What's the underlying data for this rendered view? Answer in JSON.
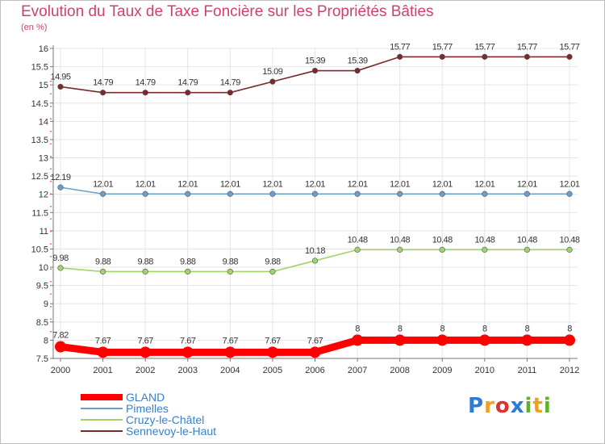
{
  "chart_data": {
    "type": "line",
    "title": "Evolution du Taux de Taxe Foncière sur les Propriétés Bâties",
    "ylabel": "(en %)",
    "xlabel": "",
    "categories": [
      "2000",
      "2001",
      "2002",
      "2003",
      "2004",
      "2005",
      "2006",
      "2007",
      "2008",
      "2009",
      "2010",
      "2011",
      "2012"
    ],
    "ylim": [
      7.5,
      16
    ],
    "yticks": [
      7.5,
      8,
      8.5,
      9,
      9.5,
      10,
      10.5,
      11,
      11.5,
      12,
      12.5,
      13,
      13.5,
      14,
      14.5,
      15,
      15.5,
      16
    ],
    "ytick_labels": [
      "7.5",
      "8",
      "8.5",
      "9",
      "9.5",
      "10",
      "10.5",
      "11",
      "11.5",
      "12",
      "12.5",
      "13",
      "13.5",
      "14",
      "14.5",
      "15",
      "15.5",
      "16"
    ],
    "grid": true,
    "legend_position": "bottom-left",
    "series": [
      {
        "name": "GLAND",
        "values": [
          7.82,
          7.67,
          7.67,
          7.67,
          7.67,
          7.67,
          7.67,
          8,
          8,
          8,
          8,
          8,
          8
        ],
        "labels": [
          "7.82",
          "7.67",
          "7.67",
          "7.67",
          "7.67",
          "7.67",
          "7.67",
          "8",
          "8",
          "8",
          "8",
          "8",
          "8"
        ],
        "color": "#ff0000",
        "bold": true
      },
      {
        "name": "Pimelles",
        "values": [
          12.19,
          12.01,
          12.01,
          12.01,
          12.01,
          12.01,
          12.01,
          12.01,
          12.01,
          12.01,
          12.01,
          12.01,
          12.01
        ],
        "labels": [
          "12.19",
          "12.01",
          "12.01",
          "12.01",
          "12.01",
          "12.01",
          "12.01",
          "12.01",
          "12.01",
          "12.01",
          "12.01",
          "12.01",
          "12.01"
        ],
        "color": "#6b9ec9",
        "bold": false
      },
      {
        "name": "Cruzy-le-Châtel",
        "values": [
          9.98,
          9.88,
          9.88,
          9.88,
          9.88,
          9.88,
          10.18,
          10.48,
          10.48,
          10.48,
          10.48,
          10.48,
          10.48
        ],
        "labels": [
          "9.98",
          "9.88",
          "9.88",
          "9.88",
          "9.88",
          "9.88",
          "10.18",
          "10.48",
          "10.48",
          "10.48",
          "10.48",
          "10.48",
          "10.48"
        ],
        "color": "#9fd56a",
        "bold": false
      },
      {
        "name": "Sennevoy-le-Haut",
        "values": [
          14.95,
          14.79,
          14.79,
          14.79,
          14.79,
          15.09,
          15.39,
          15.39,
          15.77,
          15.77,
          15.77,
          15.77,
          15.77
        ],
        "labels": [
          "14.95",
          "14.79",
          "14.79",
          "14.79",
          "14.79",
          "15.09",
          "15.39",
          "15.39",
          "15.77",
          "15.77",
          "15.77",
          "15.77",
          "15.77"
        ],
        "color": "#7a2a2a",
        "bold": false
      }
    ]
  },
  "logo": {
    "text": "Proxiti",
    "letters": [
      "P",
      "r",
      "o",
      "x",
      "i",
      "t",
      "i"
    ],
    "colors": [
      "#2b7bd8",
      "#f0a020",
      "#e03030",
      "#2b7bd8",
      "#60b030",
      "#f0a020",
      "#60b030"
    ]
  }
}
